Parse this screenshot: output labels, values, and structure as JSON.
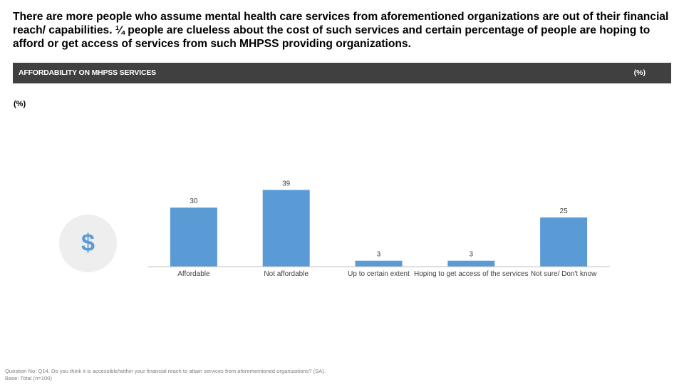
{
  "headline": "There are more people who assume mental health care services from aforementioned organizations are out of their financial reach/ capabilities. ¼ people are clueless about the cost of such services and certain percentage of people are hoping to afford or get access of services from such MHPSS providing organizations.",
  "section": {
    "title": "AFFORDABILITY ON MHPSS SERVICES",
    "unit": "(%)"
  },
  "unit_note": "(%)",
  "icon": {
    "name": "dollar-icon",
    "glyph": "$",
    "color": "#5b9bd5",
    "background": "#eeeeee"
  },
  "chart_data": {
    "type": "bar",
    "categories": [
      "Affordable",
      "Not affordable",
      "Up to certain extent",
      "Hoping to get access of the services",
      "Not sure/ Don't know"
    ],
    "values": [
      30,
      39,
      3,
      3,
      25
    ],
    "title": "",
    "xlabel": "",
    "ylabel": "",
    "ylim": [
      0,
      40
    ],
    "grid": false,
    "legend": "none",
    "bar_color": "#5b9bd5",
    "data_labels": true
  },
  "footnote": {
    "question": "Question No: Q14. Do you think it is accessible/within your financial reach to attain services from aforementioned organizations? (SA).",
    "base": "Base: Total (n=100)"
  }
}
